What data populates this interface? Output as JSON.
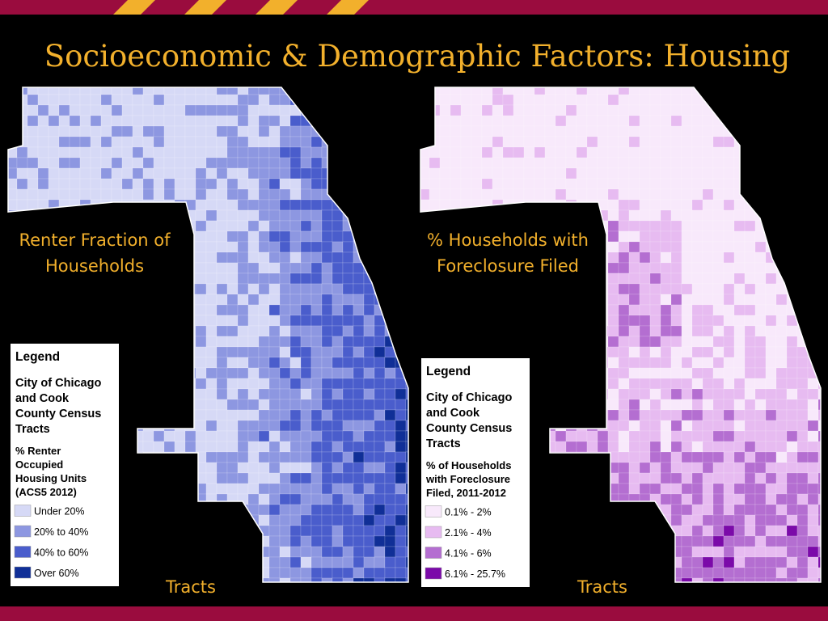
{
  "title": "Socioeconomic & Demographic Factors: Housing",
  "panels": [
    {
      "label": [
        "Renter Fraction of",
        "Households"
      ],
      "legend": {
        "heading": "Legend",
        "subtitle": [
          "City of Chicago",
          "and Cook",
          "County Census",
          "Tracts"
        ],
        "variable": [
          "% Renter",
          "Occupied",
          "Housing Units",
          "(ACS5 2012)"
        ],
        "items": [
          {
            "label": "Under 20%",
            "color": "#d6d9f6"
          },
          {
            "label": "20% to 40%",
            "color": "#8d97e1"
          },
          {
            "label": "40% to 60%",
            "color": "#4a5dcc"
          },
          {
            "label": "Over 60%",
            "color": "#102f97"
          }
        ]
      },
      "footer": "Tracts"
    },
    {
      "label": [
        "% Households with",
        "Foreclosure Filed"
      ],
      "legend": {
        "heading": "Legend",
        "subtitle": [
          "City of Chicago",
          "and Cook",
          "County Census",
          "Tracts"
        ],
        "variable": [
          "% of Households",
          "with Foreclosure",
          "Filed, 2011-2012"
        ],
        "items": [
          {
            "label": "0.1% - 2%",
            "color": "#f8e9fb"
          },
          {
            "label": "2.1% - 4%",
            "color": "#e7bbf1"
          },
          {
            "label": "4.1% - 6%",
            "color": "#b46ed1"
          },
          {
            "label": "6.1% - 25.7%",
            "color": "#7b0aa9"
          }
        ]
      },
      "footer": "Tracts"
    }
  ]
}
